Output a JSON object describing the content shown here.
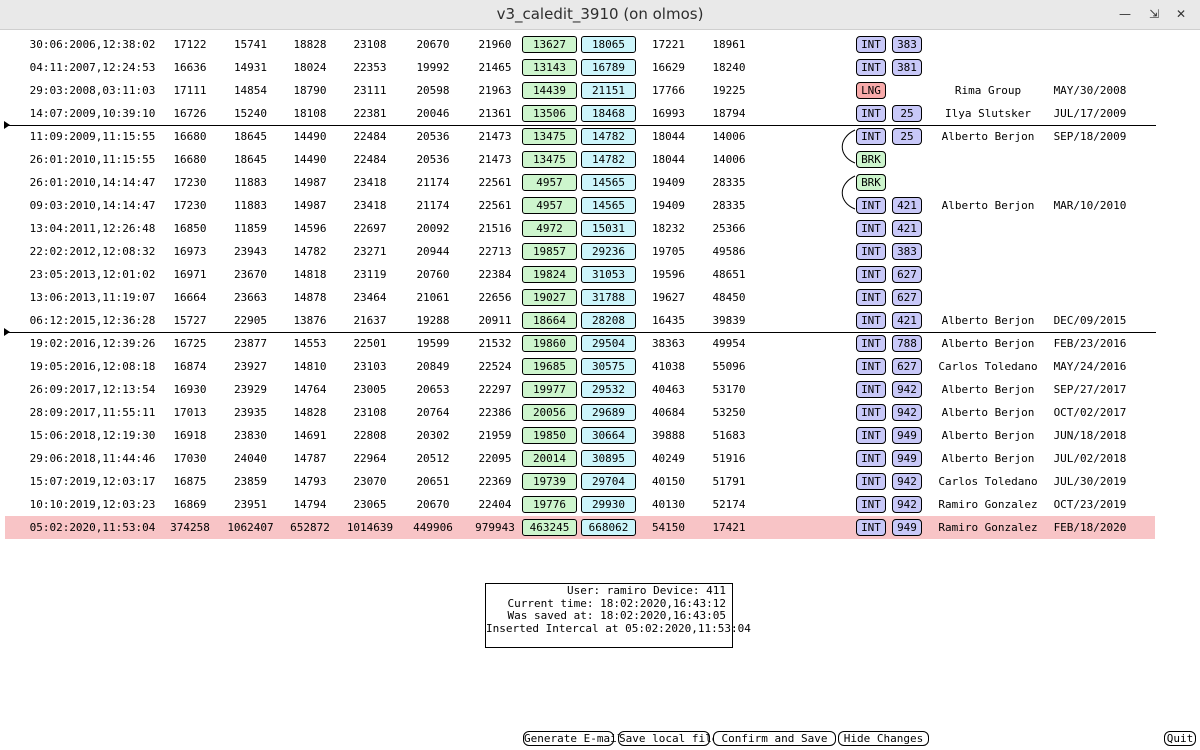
{
  "window": {
    "title": "v3_caledit_3910 (on olmos)",
    "buttons": [
      "minimize",
      "maximize",
      "close"
    ]
  },
  "rows": [
    {
      "time": "30:06:2006,12:38:02",
      "n": [
        "17122",
        "15741",
        "18828",
        "23108",
        "20670",
        "21960"
      ],
      "b1": "13627",
      "b2": "18065",
      "n9": "17221",
      "n10": "18961",
      "tag": "INT",
      "code": "383",
      "person": "",
      "date": ""
    },
    {
      "time": "04:11:2007,12:24:53",
      "n": [
        "16636",
        "14931",
        "18024",
        "22353",
        "19992",
        "21465"
      ],
      "b1": "13143",
      "b2": "16789",
      "n9": "16629",
      "n10": "18240",
      "tag": "INT",
      "code": "381",
      "person": "",
      "date": ""
    },
    {
      "time": "29:03:2008,03:11:03",
      "n": [
        "17111",
        "14854",
        "18790",
        "23111",
        "20598",
        "21963"
      ],
      "b1": "14439",
      "b2": "21151",
      "n9": "17766",
      "n10": "19225",
      "tag": "LNG",
      "code": "",
      "person": "Rima Group",
      "date": "MAY/30/2008"
    },
    {
      "time": "14:07:2009,10:39:10",
      "n": [
        "16726",
        "15240",
        "18108",
        "22381",
        "20046",
        "21361"
      ],
      "b1": "13506",
      "b2": "18468",
      "n9": "16993",
      "n10": "18794",
      "tag": "INT",
      "code": "25",
      "person": "Ilya Slutsker",
      "date": "JUL/17/2009"
    },
    {
      "time": "11:09:2009,11:15:55",
      "n": [
        "16680",
        "18645",
        "14490",
        "22484",
        "20536",
        "21473"
      ],
      "b1": "13475",
      "b2": "14782",
      "n9": "18044",
      "n10": "14006",
      "tag": "INT",
      "code": "25",
      "person": "Alberto Berjon",
      "date": "SEP/18/2009"
    },
    {
      "time": "26:01:2010,11:15:55",
      "n": [
        "16680",
        "18645",
        "14490",
        "22484",
        "20536",
        "21473"
      ],
      "b1": "13475",
      "b2": "14782",
      "n9": "18044",
      "n10": "14006",
      "tag": "BRK",
      "code": "",
      "person": "",
      "date": ""
    },
    {
      "time": "26:01:2010,14:14:47",
      "n": [
        "17230",
        "11883",
        "14987",
        "23418",
        "21174",
        "22561"
      ],
      "b1": "4957",
      "b2": "14565",
      "n9": "19409",
      "n10": "28335",
      "tag": "BRK",
      "code": "",
      "person": "",
      "date": ""
    },
    {
      "time": "09:03:2010,14:14:47",
      "n": [
        "17230",
        "11883",
        "14987",
        "23418",
        "21174",
        "22561"
      ],
      "b1": "4957",
      "b2": "14565",
      "n9": "19409",
      "n10": "28335",
      "tag": "INT",
      "code": "421",
      "person": "Alberto Berjon",
      "date": "MAR/10/2010"
    },
    {
      "time": "13:04:2011,12:26:48",
      "n": [
        "16850",
        "11859",
        "14596",
        "22697",
        "20092",
        "21516"
      ],
      "b1": "4972",
      "b2": "15031",
      "n9": "18232",
      "n10": "25366",
      "tag": "INT",
      "code": "421",
      "person": "",
      "date": ""
    },
    {
      "time": "22:02:2012,12:08:32",
      "n": [
        "16973",
        "23943",
        "14782",
        "23271",
        "20944",
        "22713"
      ],
      "b1": "19857",
      "b2": "29236",
      "n9": "19705",
      "n10": "49586",
      "tag": "INT",
      "code": "383",
      "person": "",
      "date": ""
    },
    {
      "time": "23:05:2013,12:01:02",
      "n": [
        "16971",
        "23670",
        "14818",
        "23119",
        "20760",
        "22384"
      ],
      "b1": "19824",
      "b2": "31053",
      "n9": "19596",
      "n10": "48651",
      "tag": "INT",
      "code": "627",
      "person": "",
      "date": ""
    },
    {
      "time": "13:06:2013,11:19:07",
      "n": [
        "16664",
        "23663",
        "14878",
        "23464",
        "21061",
        "22656"
      ],
      "b1": "19027",
      "b2": "31788",
      "n9": "19627",
      "n10": "48450",
      "tag": "INT",
      "code": "627",
      "person": "",
      "date": ""
    },
    {
      "time": "06:12:2015,12:36:28",
      "n": [
        "15727",
        "22905",
        "13876",
        "21637",
        "19288",
        "20911"
      ],
      "b1": "18664",
      "b2": "28208",
      "n9": "16435",
      "n10": "39839",
      "tag": "INT",
      "code": "421",
      "person": "Alberto Berjon",
      "date": "DEC/09/2015"
    },
    {
      "time": "19:02:2016,12:39:26",
      "n": [
        "16725",
        "23877",
        "14553",
        "22501",
        "19599",
        "21532"
      ],
      "b1": "19860",
      "b2": "29504",
      "n9": "38363",
      "n10": "49954",
      "tag": "INT",
      "code": "788",
      "person": "Alberto Berjon",
      "date": "FEB/23/2016"
    },
    {
      "time": "19:05:2016,12:08:18",
      "n": [
        "16874",
        "23927",
        "14810",
        "23103",
        "20849",
        "22524"
      ],
      "b1": "19685",
      "b2": "30575",
      "n9": "41038",
      "n10": "55096",
      "tag": "INT",
      "code": "627",
      "person": "Carlos Toledano",
      "date": "MAY/24/2016"
    },
    {
      "time": "26:09:2017,12:13:54",
      "n": [
        "16930",
        "23929",
        "14764",
        "23005",
        "20653",
        "22297"
      ],
      "b1": "19977",
      "b2": "29532",
      "n9": "40463",
      "n10": "53170",
      "tag": "INT",
      "code": "942",
      "person": "Alberto Berjon",
      "date": "SEP/27/2017"
    },
    {
      "time": "28:09:2017,11:55:11",
      "n": [
        "17013",
        "23935",
        "14828",
        "23108",
        "20764",
        "22386"
      ],
      "b1": "20056",
      "b2": "29689",
      "n9": "40684",
      "n10": "53250",
      "tag": "INT",
      "code": "942",
      "person": "Alberto Berjon",
      "date": "OCT/02/2017"
    },
    {
      "time": "15:06:2018,12:19:30",
      "n": [
        "16918",
        "23830",
        "14691",
        "22808",
        "20302",
        "21959"
      ],
      "b1": "19850",
      "b2": "30664",
      "n9": "39888",
      "n10": "51683",
      "tag": "INT",
      "code": "949",
      "person": "Alberto Berjon",
      "date": "JUN/18/2018"
    },
    {
      "time": "29:06:2018,11:44:46",
      "n": [
        "17030",
        "24040",
        "14787",
        "22964",
        "20512",
        "22095"
      ],
      "b1": "20014",
      "b2": "30895",
      "n9": "40249",
      "n10": "51916",
      "tag": "INT",
      "code": "949",
      "person": "Alberto Berjon",
      "date": "JUL/02/2018"
    },
    {
      "time": "15:07:2019,12:03:17",
      "n": [
        "16875",
        "23859",
        "14793",
        "23070",
        "20651",
        "22369"
      ],
      "b1": "19739",
      "b2": "29704",
      "n9": "40150",
      "n10": "51791",
      "tag": "INT",
      "code": "942",
      "person": "Carlos Toledano",
      "date": "JUL/30/2019"
    },
    {
      "time": "10:10:2019,12:03:23",
      "n": [
        "16869",
        "23951",
        "14794",
        "23065",
        "20670",
        "22404"
      ],
      "b1": "19776",
      "b2": "29930",
      "n9": "40130",
      "n10": "52174",
      "tag": "INT",
      "code": "942",
      "person": "Ramiro Gonzalez",
      "date": "OCT/23/2019"
    },
    {
      "time": "05:02:2020,11:53:04",
      "n": [
        "374258",
        "1062407",
        "652872",
        "1014639",
        "449906",
        "979943"
      ],
      "b1": "463245",
      "b2": "668062",
      "n9": "54150",
      "n10": "17421",
      "tag": "INT",
      "code": "949",
      "person": "Ramiro Gonzalez",
      "date": "FEB/18/2020",
      "highlight": true
    }
  ],
  "info": {
    "user_line": "User: ramiro Device: 411",
    "current_time": "Current time: 18:02:2020,16:43:12",
    "saved_at": "Was saved at: 18:02:2020,16:43:05",
    "inserted": "Inserted Intercal at 05:02:2020,11:53:04"
  },
  "buttons": {
    "generate_email": "Generate E-mail",
    "save_local": "Save local file",
    "confirm_save": "Confirm and Save",
    "hide_changes": "Hide Changes",
    "quit": "Quit"
  },
  "colors": {
    "box_green": "#cdf5cd",
    "box_cyan": "#ccf5fb",
    "tag_int": "#c8c8f8",
    "tag_lng": "#f8aaaa",
    "highlight_row": "#f8c4c6"
  }
}
